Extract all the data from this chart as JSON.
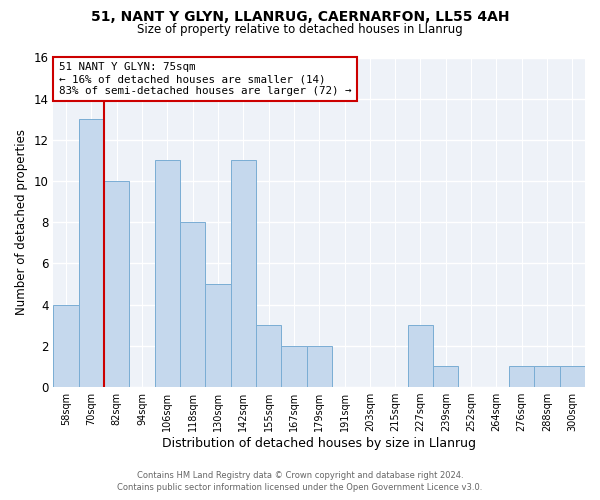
{
  "title": "51, NANT Y GLYN, LLANRUG, CAERNARFON, LL55 4AH",
  "subtitle": "Size of property relative to detached houses in Llanrug",
  "xlabel": "Distribution of detached houses by size in Llanrug",
  "ylabel": "Number of detached properties",
  "bar_labels": [
    "58sqm",
    "70sqm",
    "82sqm",
    "94sqm",
    "106sqm",
    "118sqm",
    "130sqm",
    "142sqm",
    "155sqm",
    "167sqm",
    "179sqm",
    "191sqm",
    "203sqm",
    "215sqm",
    "227sqm",
    "239sqm",
    "252sqm",
    "264sqm",
    "276sqm",
    "288sqm",
    "300sqm"
  ],
  "bar_values": [
    4,
    13,
    10,
    0,
    11,
    8,
    5,
    11,
    3,
    2,
    2,
    0,
    0,
    0,
    3,
    1,
    0,
    0,
    1,
    1,
    1
  ],
  "bar_color": "#c5d8ed",
  "bar_edgecolor": "#7aadd4",
  "vline_color": "#cc0000",
  "annotation_title": "51 NANT Y GLYN: 75sqm",
  "annotation_line1": "← 16% of detached houses are smaller (14)",
  "annotation_line2": "83% of semi-detached houses are larger (72) →",
  "annotation_box_edgecolor": "#cc0000",
  "ylim": [
    0,
    16
  ],
  "yticks": [
    0,
    2,
    4,
    6,
    8,
    10,
    12,
    14,
    16
  ],
  "background_color": "#eef2f8",
  "footer_line1": "Contains HM Land Registry data © Crown copyright and database right 2024.",
  "footer_line2": "Contains public sector information licensed under the Open Government Licence v3.0."
}
